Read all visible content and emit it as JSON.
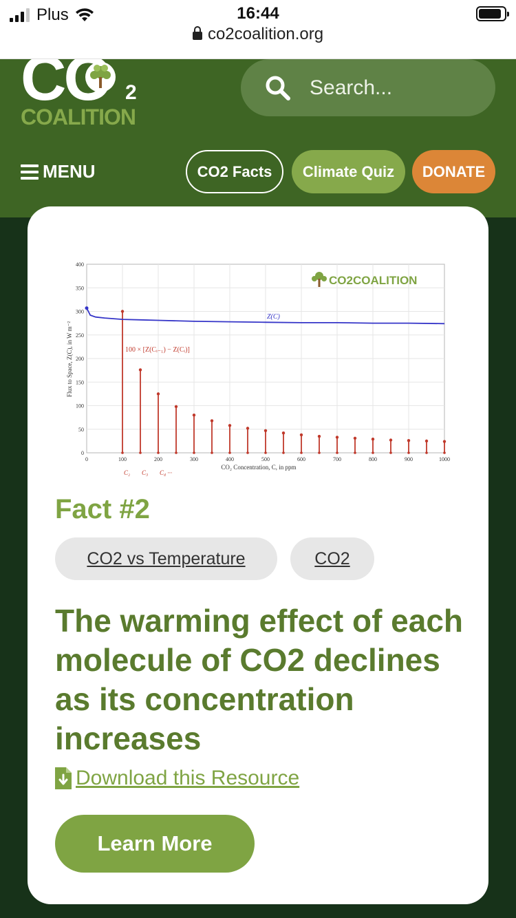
{
  "status_bar": {
    "carrier": "Plus",
    "time": "16:44",
    "url": "co2coalition.org",
    "signal_bars": 3,
    "battery_level": 0.9
  },
  "header": {
    "logo_top": "CO",
    "logo_sub": "2",
    "logo_bottom": "COALITION",
    "search_placeholder": "Search...",
    "menu_label": "MENU",
    "nav": {
      "facts": "CO2 Facts",
      "quiz": "Climate Quiz",
      "donate": "DONATE"
    }
  },
  "colors": {
    "brand_dark": "#3e6524",
    "brand_light": "#86a94b",
    "donate": "#dc8637",
    "curve": "#3535c8",
    "stems": "#c0392b"
  },
  "card": {
    "fact_label": "Fact #2",
    "tags": [
      "CO2 vs Temperature",
      "CO2"
    ],
    "headline": "The warming effect of each molecule of CO2 declines as its concentration increases",
    "download_label": "Download this Resource",
    "learn_more": "Learn More"
  },
  "chart_data": {
    "type": "line",
    "watermark": "CO2COALITION",
    "xlabel": "CO₂ Concentration, C, in ppm",
    "ylabel": "Flux to Space, Z(C), in W m⁻²",
    "xlim": [
      0,
      1000
    ],
    "ylim": [
      0,
      400
    ],
    "x_ticks": [
      0,
      100,
      200,
      300,
      400,
      500,
      600,
      700,
      800,
      900,
      1000
    ],
    "y_ticks": [
      0,
      50,
      100,
      150,
      200,
      250,
      300,
      350,
      400
    ],
    "grid": true,
    "curve_label": "Z(C)",
    "stem_label": "100 × [Z(Cᵢ₋₁) − Z(Cᵢ)]",
    "under_axis_labels": [
      "C₂",
      "C₃",
      "C₄ ···"
    ],
    "series": [
      {
        "name": "Z(C)",
        "x": [
          0,
          10,
          25,
          50,
          100,
          150,
          200,
          300,
          400,
          500,
          600,
          700,
          800,
          900,
          1000
        ],
        "y": [
          307,
          292,
          288,
          286,
          283,
          282,
          281,
          279,
          278,
          277,
          276,
          276,
          275,
          275,
          274
        ]
      },
      {
        "name": "100 × [Z(Cᵢ₋₁) − Z(Cᵢ)]",
        "x": [
          100,
          150,
          200,
          250,
          300,
          350,
          400,
          450,
          500,
          550,
          600,
          650,
          700,
          750,
          800,
          850,
          900,
          950,
          1000
        ],
        "y": [
          300,
          176,
          125,
          98,
          80,
          68,
          58,
          52,
          47,
          42,
          38,
          35,
          33,
          31,
          29,
          27,
          26,
          25,
          24
        ]
      }
    ]
  }
}
